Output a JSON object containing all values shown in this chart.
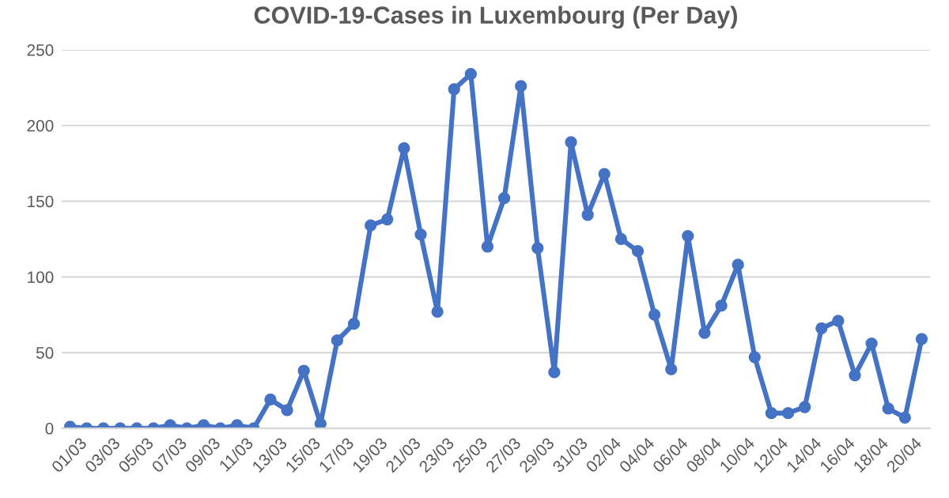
{
  "chart_data": {
    "type": "line",
    "title": "COVID-19-Cases in Luxembourg (Per Day)",
    "categories": [
      "01/03",
      null,
      "03/03",
      null,
      "05/03",
      null,
      "07/03",
      null,
      "09/03",
      null,
      "11/03",
      null,
      "13/03",
      null,
      "15/03",
      null,
      "17/03",
      null,
      "19/03",
      null,
      "21/03",
      null,
      "23/03",
      null,
      "25/03",
      null,
      "27/03",
      null,
      "29/03",
      null,
      "31/03",
      null,
      "02/04",
      null,
      "04/04",
      null,
      "06/04",
      null,
      "08/04",
      null,
      "10/04",
      null,
      "12/04",
      null,
      "14/04",
      null,
      "16/04",
      null,
      "18/04",
      null,
      "20/04",
      null
    ],
    "series": [
      {
        "color": "#4472c4",
        "values": [
          1,
          0,
          0,
          0,
          0,
          0,
          2,
          0,
          2,
          0,
          2,
          0,
          19,
          12,
          38,
          3,
          58,
          69,
          134,
          138,
          185,
          128,
          77,
          224,
          234,
          120,
          152,
          226,
          119,
          37,
          189,
          141,
          168,
          125,
          117,
          75,
          39,
          127,
          63,
          81,
          108,
          47,
          10,
          10,
          14,
          66,
          71,
          35,
          56,
          13,
          7,
          59
        ]
      }
    ],
    "ylim": [
      0,
      250
    ],
    "yticks": [
      0,
      50,
      100,
      150,
      200,
      250
    ],
    "grid": "y",
    "marker": "circle",
    "line_style": "solid",
    "legend": false
  }
}
